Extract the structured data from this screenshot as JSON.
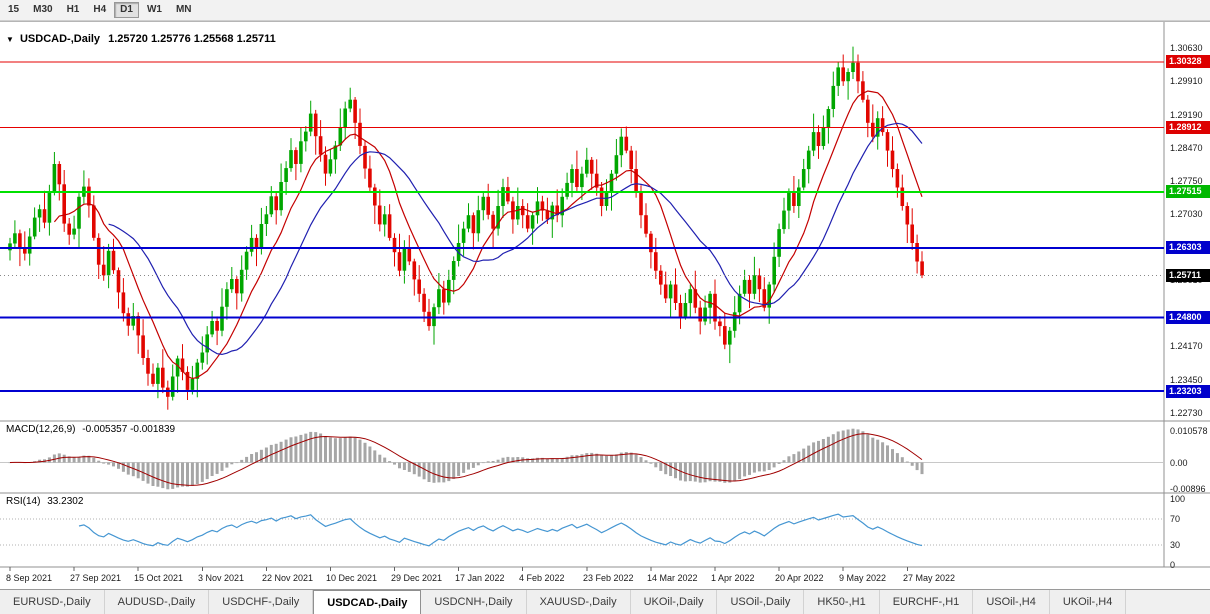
{
  "toolbar": {
    "timeframes": [
      "15",
      "M30",
      "H1",
      "H4",
      "D1",
      "W1",
      "MN"
    ],
    "active": "D1"
  },
  "chart": {
    "collapse_glyph": "▼",
    "title": "USDCAD-,Daily",
    "ohlc": "1.25720 1.25776 1.25568 1.25711",
    "levels": [
      {
        "price": 1.30328,
        "color": "#e60000",
        "width": 1
      },
      {
        "price": 1.28912,
        "color": "#e60000",
        "width": 1
      },
      {
        "price": 1.27515,
        "color": "#00e100",
        "width": 2
      },
      {
        "price": 1.26303,
        "color": "#0000d0",
        "width": 2
      },
      {
        "price": 1.25711,
        "color": "#888888",
        "width": 1,
        "dash": "1 3"
      },
      {
        "price": 1.248,
        "color": "#0000d0",
        "width": 2
      },
      {
        "price": 1.23203,
        "color": "#0000d0",
        "width": 2
      }
    ],
    "price_axis": {
      "plain": [
        "1.30630",
        "1.29910",
        "1.29190",
        "1.28470",
        "1.27750",
        "1.27030",
        "1.25610",
        "1.24170",
        "1.23450",
        "1.22730"
      ],
      "badges": [
        {
          "text": "1.30328",
          "color": "#dd0000"
        },
        {
          "text": "1.28912",
          "color": "#dd0000"
        },
        {
          "text": "1.27515",
          "color": "#00b800"
        },
        {
          "text": "1.26303",
          "color": "#0000cc"
        },
        {
          "text": "1.25711",
          "color": "#000000"
        },
        {
          "text": "1.24800",
          "color": "#0000cc"
        },
        {
          "text": "1.23203",
          "color": "#0000cc"
        }
      ]
    },
    "dates": [
      {
        "i": 0,
        "label": "8 Sep 2021"
      },
      {
        "i": 13,
        "label": "27 Sep 2021"
      },
      {
        "i": 26,
        "label": "15 Oct 2021"
      },
      {
        "i": 39,
        "label": "3 Nov 2021"
      },
      {
        "i": 52,
        "label": "22 Nov 2021"
      },
      {
        "i": 65,
        "label": "10 Dec 2021"
      },
      {
        "i": 78,
        "label": "29 Dec 2021"
      },
      {
        "i": 91,
        "label": "17 Jan 2022"
      },
      {
        "i": 104,
        "label": "4 Feb 2022"
      },
      {
        "i": 117,
        "label": "23 Feb 2022"
      },
      {
        "i": 130,
        "label": "14 Mar 2022"
      },
      {
        "i": 143,
        "label": "1 Apr 2022"
      },
      {
        "i": 156,
        "label": "20 Apr 2022"
      },
      {
        "i": 169,
        "label": "9 May 2022"
      },
      {
        "i": 182,
        "label": "27 May 2022"
      }
    ]
  },
  "chart_data": {
    "type": "candlestick",
    "symbol": "USDCAD-",
    "timeframe": "Daily",
    "open0": 1.2625,
    "closes": [
      1.264,
      1.2662,
      1.2631,
      1.2618,
      1.2655,
      1.2696,
      1.2714,
      1.2685,
      1.2752,
      1.2812,
      1.2768,
      1.2683,
      1.2659,
      1.2672,
      1.2741,
      1.2763,
      1.2722,
      1.2652,
      1.2594,
      1.2571,
      1.2624,
      1.2582,
      1.2534,
      1.2489,
      1.2462,
      1.2483,
      1.2441,
      1.2392,
      1.2358,
      1.2336,
      1.2371,
      1.2328,
      1.2308,
      1.2352,
      1.2391,
      1.2362,
      1.2323,
      1.2347,
      1.2382,
      1.2404,
      1.2443,
      1.2472,
      1.2451,
      1.2503,
      1.2541,
      1.2563,
      1.2532,
      1.2583,
      1.2622,
      1.2652,
      1.2631,
      1.2682,
      1.2703,
      1.2742,
      1.2712,
      1.2773,
      1.2803,
      1.2842,
      1.2812,
      1.2861,
      1.2882,
      1.2921,
      1.2872,
      1.2832,
      1.2791,
      1.2822,
      1.2852,
      1.2892,
      1.2932,
      1.2951,
      1.2901,
      1.2851,
      1.2802,
      1.2761,
      1.2722,
      1.2681,
      1.2703,
      1.2652,
      1.2621,
      1.2581,
      1.2632,
      1.2601,
      1.2562,
      1.2531,
      1.2492,
      1.2461,
      1.2502,
      1.2541,
      1.2512,
      1.2561,
      1.2602,
      1.2641,
      1.2672,
      1.2701,
      1.2662,
      1.2712,
      1.2741,
      1.2702,
      1.2672,
      1.2721,
      1.2762,
      1.2731,
      1.2692,
      1.2721,
      1.2701,
      1.2672,
      1.2701,
      1.2731,
      1.2711,
      1.2692,
      1.2722,
      1.2701,
      1.2741,
      1.2771,
      1.2801,
      1.2762,
      1.2791,
      1.2821,
      1.2791,
      1.2761,
      1.2721,
      1.2751,
      1.2791,
      1.2831,
      1.2871,
      1.2841,
      1.2801,
      1.2751,
      1.2701,
      1.2661,
      1.2621,
      1.2581,
      1.2551,
      1.2521,
      1.2551,
      1.2511,
      1.2481,
      1.2511,
      1.2541,
      1.2501,
      1.2471,
      1.2501,
      1.2531,
      1.2471,
      1.2461,
      1.2421,
      1.2451,
      1.2491,
      1.2531,
      1.2561,
      1.2531,
      1.2571,
      1.2541,
      1.2501,
      1.2551,
      1.2611,
      1.2671,
      1.2711,
      1.2751,
      1.2721,
      1.2761,
      1.2801,
      1.2841,
      1.2881,
      1.2851,
      1.2891,
      1.2931,
      1.2981,
      1.3021,
      1.2991,
      1.3011,
      1.3031,
      1.2991,
      1.2951,
      1.2901,
      1.2871,
      1.2911,
      1.2881,
      1.2841,
      1.2801,
      1.2761,
      1.2721,
      1.2681,
      1.2641,
      1.2601,
      1.2571
    ],
    "wick_pattern": [
      0.0012,
      0.0028,
      0.0008,
      0.0035,
      0.0018,
      0.0022,
      0.001,
      0.004,
      0.0015,
      0.0026,
      0.0006,
      0.0031
    ],
    "colors": {
      "up": "#00a600",
      "down": "#e10600"
    },
    "ma": [
      {
        "period": 10,
        "color": "#c40000"
      },
      {
        "period": 21,
        "color": "#2020b0"
      }
    ],
    "macd": {
      "label": "MACD(12,26,9)",
      "values": "-0.005357 -0.001839",
      "fast": 12,
      "slow": 26,
      "signal": 9,
      "axis": [
        {
          "text": "0.010578",
          "value": 0.010578
        },
        {
          "text": "0.00",
          "value": 0
        },
        {
          "text": "-0.00896",
          "value": -0.00896
        }
      ],
      "histogram_color": "#a6a6a6",
      "signal_color": "#a00000"
    },
    "rsi": {
      "label": "RSI(14)",
      "value": "33.2302",
      "period": 14,
      "axis": [
        {
          "text": "100",
          "value": 100
        },
        {
          "text": "70",
          "value": 70
        },
        {
          "text": "30",
          "value": 30
        },
        {
          "text": "0",
          "value": 0
        }
      ],
      "levels": [
        70,
        30
      ],
      "color": "#4596d2"
    }
  },
  "tabs": {
    "items": [
      "EURUSD-,Daily",
      "AUDUSD-,Daily",
      "USDCHF-,Daily",
      "USDCAD-,Daily",
      "USDCNH-,Daily",
      "XAUUSD-,Daily",
      "UKOil-,Daily",
      "USOil-,Daily",
      "HK50-,H1",
      "EURCHF-,H1",
      "USOil-,H4",
      "UKOil-,H4"
    ],
    "active": "USDCAD-,Daily"
  }
}
